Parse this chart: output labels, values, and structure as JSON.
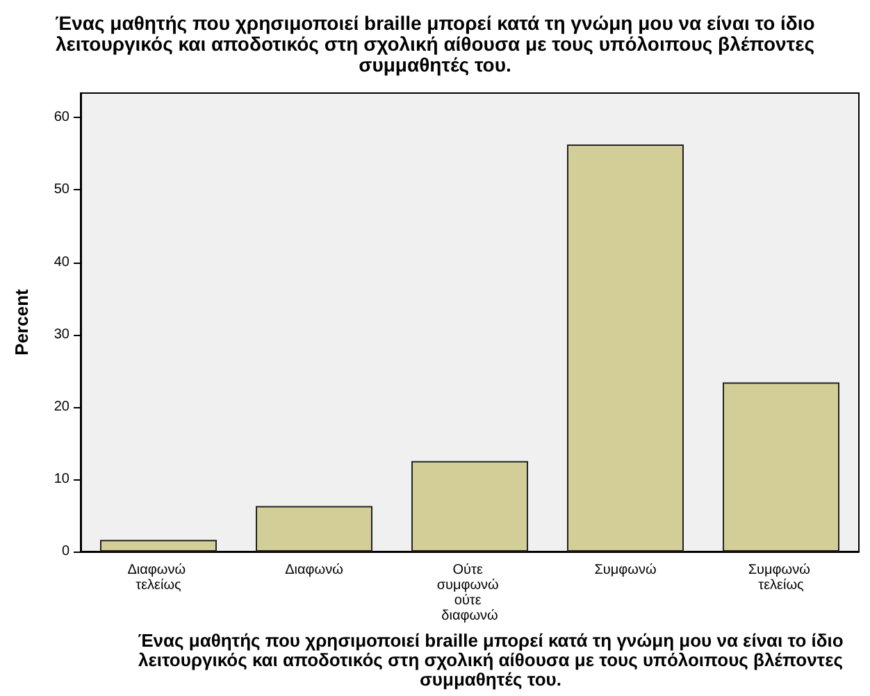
{
  "chart_data": {
    "type": "bar",
    "title": "Ένας μαθητής που χρησιμοποιεί braille μπορεί κατά τη γνώμη μου να είναι το ίδιο λειτουργικός και αποδοτικός στη σχολική αίθουσα με τους υπόλοιπους βλέποντες συμμαθητές του.",
    "xlabel": "Ένας μαθητής που χρησιμοποιεί braille μπορεί κατά τη γνώμη μου να είναι το ίδιο λειτουργικός και αποδοτικός στη σχολική αίθουσα με τους υπόλοιπους βλέποντες συμμαθητές του.",
    "ylabel": "Percent",
    "categories": [
      "Διαφωνώ τελείως",
      "Διαφωνώ",
      "Ούτε συμφωνώ ούτε διαφωνώ",
      "Συμφωνώ",
      "Συμφωνώ τελείως"
    ],
    "values": [
      1.6,
      6.3,
      12.5,
      56.3,
      23.4
    ],
    "color": "#d3ce97",
    "ylim": [
      0,
      63.4
    ],
    "yticks": [
      0,
      10,
      20,
      30,
      40,
      50,
      60
    ],
    "grid": false
  }
}
